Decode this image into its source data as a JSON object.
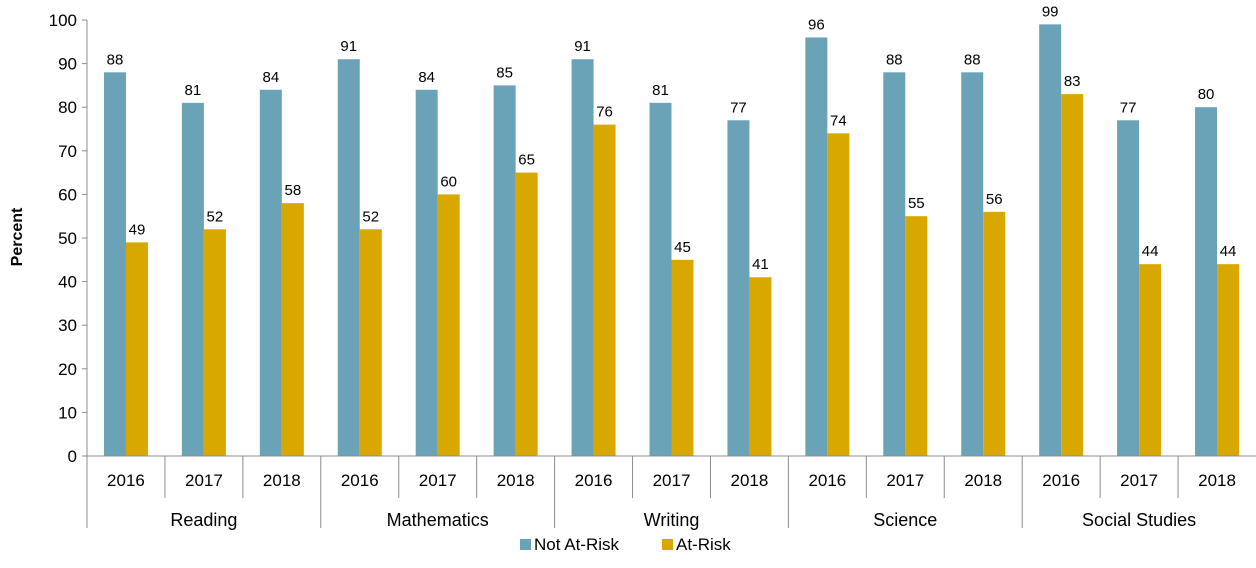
{
  "chart_data": {
    "type": "bar",
    "title": "",
    "xlabel": "",
    "ylabel": "Percent",
    "ylim": [
      0,
      100
    ],
    "yticks": [
      0,
      10,
      20,
      30,
      40,
      50,
      60,
      70,
      80,
      90,
      100
    ],
    "grid": false,
    "legend_position": "bottom",
    "groups": [
      {
        "name": "Reading",
        "categories": [
          "2016",
          "2017",
          "2018"
        ]
      },
      {
        "name": "Mathematics",
        "categories": [
          "2016",
          "2017",
          "2018"
        ]
      },
      {
        "name": "Writing",
        "categories": [
          "2016",
          "2017",
          "2018"
        ]
      },
      {
        "name": "Science",
        "categories": [
          "2016",
          "2017",
          "2018"
        ]
      },
      {
        "name": "Social Studies",
        "categories": [
          "2016",
          "2017",
          "2018"
        ]
      }
    ],
    "series": [
      {
        "name": "Not At-Risk",
        "color": "#6aa3b8",
        "values": [
          88,
          81,
          84,
          91,
          84,
          85,
          91,
          81,
          77,
          96,
          88,
          88,
          99,
          77,
          80
        ]
      },
      {
        "name": "At-Risk",
        "color": "#d9a800",
        "values": [
          49,
          52,
          58,
          52,
          60,
          65,
          76,
          45,
          41,
          74,
          55,
          56,
          83,
          44,
          44
        ]
      }
    ]
  }
}
